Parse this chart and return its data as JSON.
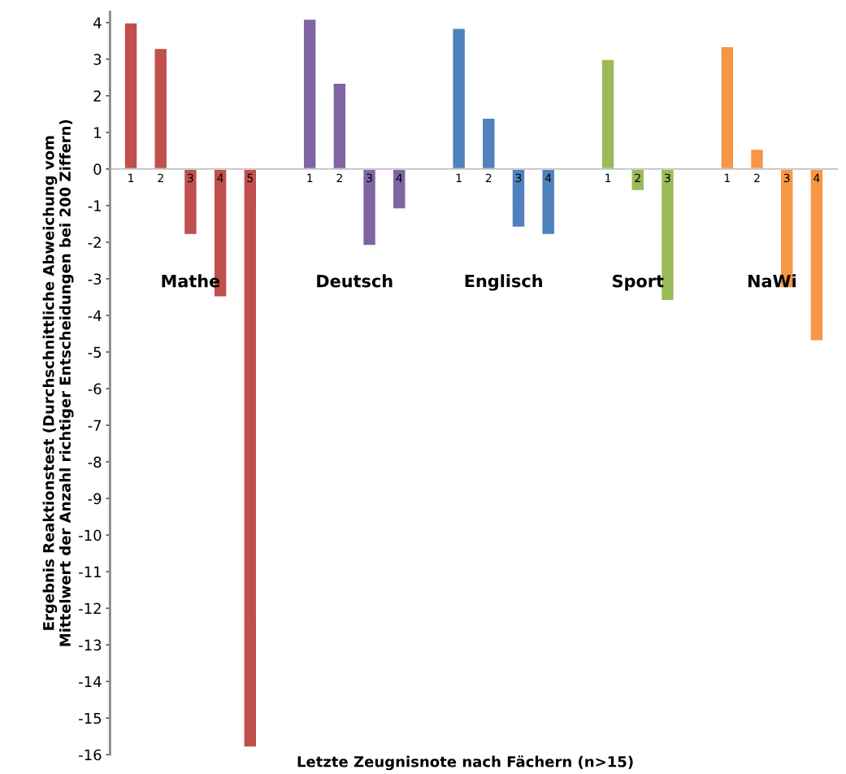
{
  "chart_data": {
    "type": "bar",
    "xlabel": "Letzte Zeugnisnote nach Fächern (n>15)",
    "ylabel": "Ergebnis Reaktionstest (Durchschnittliche Abweichung vom\nMittelwert der Anzahl richtiger Entscheidungen bei 200 Ziffern)",
    "categories": [
      "1",
      "2",
      "3",
      "4",
      "5",
      null,
      "1",
      "2",
      "3",
      "4",
      null,
      "1",
      "2",
      "3",
      "4",
      null,
      "1",
      "2",
      "3",
      null,
      "1",
      "2",
      "3",
      "4"
    ],
    "values": [
      4.0,
      3.3,
      -1.8,
      -3.5,
      -15.8,
      null,
      4.1,
      2.35,
      -2.1,
      -1.1,
      null,
      3.85,
      1.4,
      -1.6,
      -1.8,
      null,
      3.0,
      -0.6,
      -3.6,
      null,
      3.35,
      0.55,
      -3.25,
      -4.7
    ],
    "colors": [
      "#c0504d",
      "#c0504d",
      "#c0504d",
      "#c0504d",
      "#c0504d",
      null,
      "#8064a2",
      "#8064a2",
      "#8064a2",
      "#8064a2",
      null,
      "#4f81bd",
      "#4f81bd",
      "#4f81bd",
      "#4f81bd",
      null,
      "#9bbb59",
      "#9bbb59",
      "#9bbb59",
      null,
      "#f79646",
      "#f79646",
      "#f79646",
      "#f79646"
    ],
    "ylim": [
      -16,
      4.3
    ],
    "yticks": [
      -16,
      -15,
      -14,
      -13,
      -12,
      -11,
      -10,
      -9,
      -8,
      -7,
      -6,
      -5,
      -4,
      -3,
      -2,
      -1,
      0,
      1,
      2,
      3,
      4
    ],
    "annotations": [
      "Mathe",
      "Deutsch",
      "Englisch",
      "Sport",
      "NaWi"
    ],
    "grid": false,
    "legend": false
  }
}
